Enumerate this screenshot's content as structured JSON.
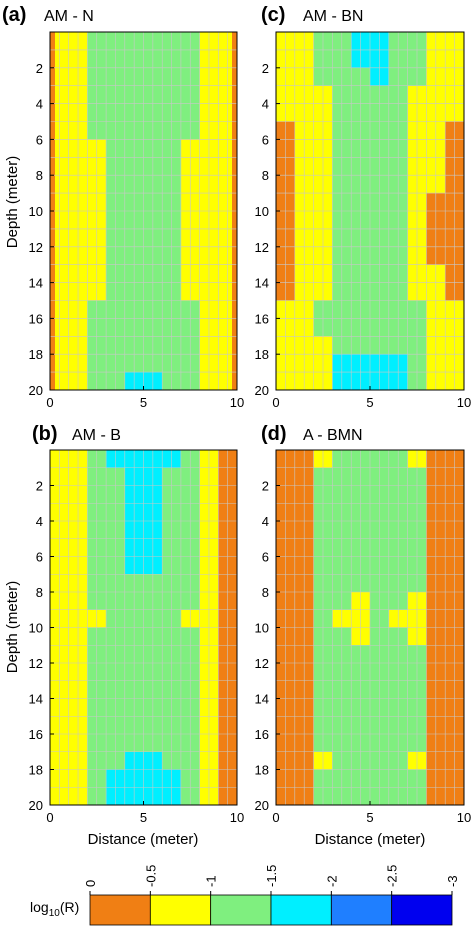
{
  "figure": {
    "colorbar_label": "log10(R)",
    "colorbar": {
      "ticks": [
        "0",
        "-0.5",
        "-1",
        "-1.5",
        "-2",
        "-2.5",
        "-3"
      ],
      "range": [
        0,
        -3
      ],
      "bin_colors": [
        "#f07f14",
        "#ffff00",
        "#7fef7f",
        "#00efff",
        "#1f7fff",
        "#0000ef"
      ]
    },
    "grid": true
  },
  "chart_data": [
    {
      "type": "heatmap",
      "letter": "(a)",
      "title": "AM - N",
      "xlabel": "",
      "ylabel": "Depth (meter)",
      "x_ticks": [
        "0",
        "5",
        "10"
      ],
      "y_ticks": [
        "2",
        "4",
        "6",
        "8",
        "10",
        "12",
        "14",
        "16",
        "18",
        "20"
      ],
      "xlim": [
        0,
        10
      ],
      "ylim": [
        0,
        20
      ],
      "y_inverted": true,
      "columns": 10,
      "rows": 20,
      "value_bins": [
        "0 to -0.5",
        "-0.5 to -1",
        "-1 to -1.5",
        "-1.5 to -2"
      ],
      "bin_grid": [
        "011111111110",
        "011111111110",
        "011111111110",
        "011111111110",
        "011111111110",
        "011111111110",
        "001111111100",
        "001111111100",
        "001111111100",
        "001111111100",
        "001111111100",
        "001111111100",
        "001111111100",
        "011111111110",
        "011111111110",
        "011111111110",
        "011111111110",
        "011111111110",
        "011111111110",
        "011111111110"
      ],
      "edge_strips": [
        {
          "side": "left",
          "depth_from": 0,
          "depth_to": 20,
          "bin": 0
        },
        {
          "side": "right",
          "depth_from": 0,
          "depth_to": 20,
          "bin": 0
        }
      ],
      "cells": [
        "YYGGGGGGYY",
        "YYGGGGGGYY",
        "YYGGGGGGYY",
        "YYGGGGGGYY",
        "YYGGGGGGYY",
        "YYGGGGGGYY",
        "YYYGGGGYYY",
        "YYYGGGGYYY",
        "YYYGGGGYYY",
        "YYYGGGGYYY",
        "YYYGGGGYYY",
        "YYYGGGGYYY",
        "YYYGGGGYYY",
        "YYYGGGGYYY",
        "YYYGGGGYYY",
        "YYGGGGGGYY",
        "YYGGGGGGYY",
        "YYGGGGGGYY",
        "YYGGGGGGYY",
        "YYGGCCGGYY"
      ]
    },
    {
      "type": "heatmap",
      "letter": "(c)",
      "title": "AM - BN",
      "xlabel": "",
      "ylabel": "",
      "x_ticks": [
        "0",
        "5",
        "10"
      ],
      "y_ticks": [
        "2",
        "4",
        "6",
        "8",
        "10",
        "12",
        "14",
        "16",
        "18",
        "20"
      ],
      "xlim": [
        0,
        10
      ],
      "ylim": [
        0,
        20
      ],
      "y_inverted": true,
      "columns": 10,
      "rows": 20,
      "value_bins": [
        "0 to -0.5",
        "-0.5 to -1",
        "-1 to -1.5",
        "-1.5 to -2"
      ],
      "cells": [
        "YYGGCCGGYY",
        "YYGGCCGGYY",
        "YYGGGCGGYY",
        "YYYGGGGYYY",
        "YYYGGGGYYY",
        "OYYGGGGYYO",
        "OYYGGGGYYO",
        "OYYGGGGYYO",
        "OYYGGGGYYO",
        "OYYGGGGYOO",
        "OYYGGGGYOO",
        "OYYGGGGYOO",
        "OYYGGGGYOO",
        "OYYGGGGYYO",
        "OYYGGGGYYO",
        "YYGGGGGGYY",
        "YYGGGGGGYY",
        "YYYGGGGGYY",
        "YYYCCCCGYY",
        "YYYCCCCGYY"
      ]
    },
    {
      "type": "heatmap",
      "letter": "(b)",
      "title": "AM - B",
      "xlabel": "Distance (meter)",
      "ylabel": "Depth (meter)",
      "x_ticks": [
        "0",
        "5",
        "10"
      ],
      "y_ticks": [
        "2",
        "4",
        "6",
        "8",
        "10",
        "12",
        "14",
        "16",
        "18",
        "20"
      ],
      "xlim": [
        0,
        10
      ],
      "ylim": [
        0,
        20
      ],
      "y_inverted": true,
      "columns": 10,
      "rows": 20,
      "value_bins": [
        "0 to -0.5",
        "-0.5 to -1",
        "-1 to -1.5",
        "-1.5 to -2"
      ],
      "cells": [
        "YYGCCCCGYO",
        "YYGGCCGGYO",
        "YYGGCCGGYO",
        "YYGGCCGGYO",
        "YYGGCCGGYO",
        "YYGGCCGGYO",
        "YYGGCCGGYO",
        "YYGGGGGGYO",
        "YYGGGGGGYO",
        "YYYGGGGYYO",
        "YYGGGGGGYO",
        "YYGGGGGGYO",
        "YYGGGGGGYO",
        "YYGGGGGGYO",
        "YYGGGGGGYO",
        "YYGGGGGGYO",
        "YYGGGGGGYO",
        "YYGGCCGGYO",
        "YYGCCCCGYO",
        "YYGCCCCGYO"
      ]
    },
    {
      "type": "heatmap",
      "letter": "(d)",
      "title": "A - BMN",
      "xlabel": "Distance (meter)",
      "ylabel": "",
      "x_ticks": [
        "0",
        "5",
        "10"
      ],
      "y_ticks": [
        "2",
        "4",
        "6",
        "8",
        "10",
        "12",
        "14",
        "16",
        "18",
        "20"
      ],
      "xlim": [
        0,
        10
      ],
      "ylim": [
        0,
        20
      ],
      "y_inverted": true,
      "columns": 10,
      "rows": 20,
      "value_bins": [
        "0 to -0.5",
        "-0.5 to -1",
        "-1 to -1.5",
        "-1.5 to -2"
      ],
      "cells": [
        "OOYGGGGYOO",
        "OOGGGGGGOO",
        "OOGGGGGGOO",
        "OOGGGGGGOO",
        "OOGGGGGGOO",
        "OOGGGGGGOO",
        "OOGGGGGGOO",
        "OOGGGGGGOO",
        "OOGGYGGYOO",
        "OOGYYGYYOO",
        "OOGGYGGYOO",
        "OOGGGGGGOO",
        "OOGGGGGGOO",
        "OOGGGGGGOO",
        "OOGGGGGGOO",
        "OOGGGGGGOO",
        "OOGGGGGGOO",
        "OOYGGGGYOO",
        "OOGGGGGGOO",
        "OOGGGGGGOO"
      ]
    }
  ]
}
